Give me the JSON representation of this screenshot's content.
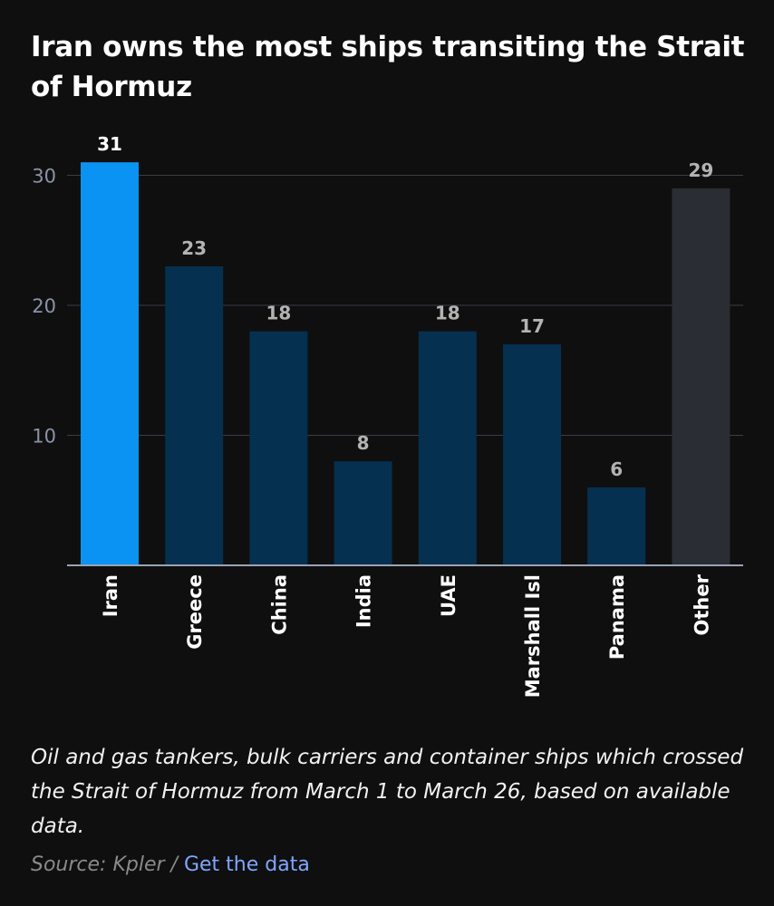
{
  "title": "Iran owns the most ships transiting the Strait of Hormuz",
  "note": "Oil and gas tankers, bulk carriers and container ships which crossed the Strait of Hormuz from March 1  to March 26, based on available data.",
  "source": {
    "text": "Source: Kpler /",
    "link_label": "Get the data"
  },
  "colors": {
    "highlight": "#0a93f2",
    "default_bar": "#05304f",
    "other_bar": "#2a2d33",
    "highlight_label": "#ffffff",
    "default_label": "#b3b3b3",
    "axis_tick": "#8a93a6",
    "gridline": "#3a3d44",
    "axis_line": "#9aa3b5"
  },
  "chart_data": {
    "type": "bar",
    "categories": [
      "Iran",
      "Greece",
      "China",
      "India",
      "UAE",
      "Marshall Isl",
      "Panama",
      "Other"
    ],
    "values": [
      31,
      23,
      18,
      8,
      18,
      17,
      6,
      29
    ],
    "data_labels": [
      "31",
      "23",
      "18",
      "8",
      "18",
      "17",
      "6",
      "29"
    ],
    "bar_styles": [
      "highlight",
      "default",
      "default",
      "default",
      "default",
      "default",
      "default",
      "other"
    ],
    "yticks": [
      10,
      20,
      30
    ],
    "ytick_labels": [
      "10",
      "20",
      "30"
    ],
    "ylim": [
      0,
      31
    ],
    "grid": true,
    "legend": "none",
    "xlabel": "",
    "ylabel": ""
  }
}
